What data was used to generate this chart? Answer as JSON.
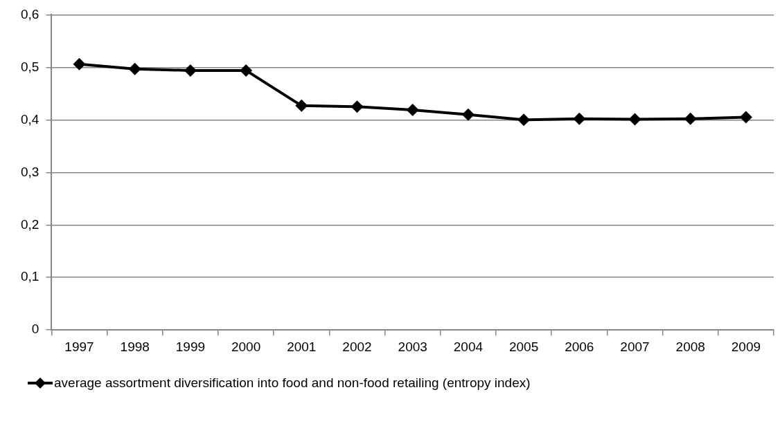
{
  "chart_data": {
    "type": "line",
    "categories": [
      "1997",
      "1998",
      "1999",
      "2000",
      "2001",
      "2002",
      "2003",
      "2004",
      "2005",
      "2006",
      "2007",
      "2008",
      "2009"
    ],
    "series": [
      {
        "name": "average assortment diversification into food and non-food retailing (entropy index)",
        "color": "#000000",
        "values": [
          0.506,
          0.497,
          0.494,
          0.494,
          0.427,
          0.425,
          0.419,
          0.41,
          0.4,
          0.402,
          0.401,
          0.402,
          0.405
        ]
      }
    ],
    "ylim": [
      0,
      0.6
    ],
    "yticks": [
      {
        "value": 0,
        "label": "0"
      },
      {
        "value": 0.1,
        "label": "0,1"
      },
      {
        "value": 0.2,
        "label": "0,2"
      },
      {
        "value": 0.3,
        "label": "0,3"
      },
      {
        "value": 0.4,
        "label": "0,4"
      },
      {
        "value": 0.5,
        "label": "0,5"
      },
      {
        "value": 0.6,
        "label": "0,6"
      }
    ],
    "grid": "y",
    "legend": "bottom left",
    "marker": "diamond",
    "line_style": "solid"
  }
}
